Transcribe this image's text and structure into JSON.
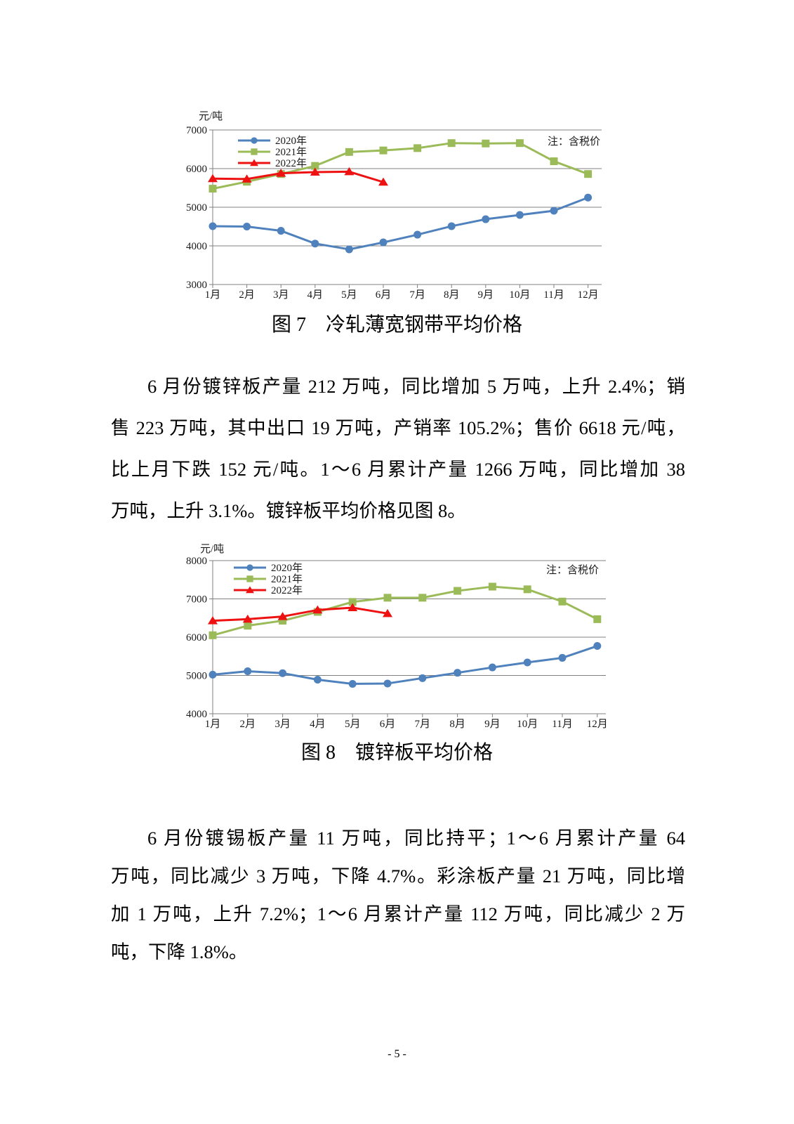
{
  "footer": {
    "page_number": "- 5 -"
  },
  "paragraphs": [
    {
      "lines": [
        "6 月份镀锌板产量 212 万吨，同比增加 5 万吨，上升 2.4%；销",
        "售 223 万吨，其中出口 19 万吨，产销率 105.2%；售价 6618 元/吨，",
        "比上月下跌 152 元/吨。1～6 月累计产量 1266 万吨，同比增加 38",
        "万吨，上升 3.1%。镀锌板平均价格见图 8。"
      ]
    },
    {
      "lines": [
        "6 月份镀锡板产量 11 万吨，同比持平；1～6 月累计产量 64",
        "万吨，同比减少 3 万吨，下降 4.7%。彩涂板产量 21 万吨，同比增",
        "加 1 万吨，上升 7.2%；1～6 月累计产量 112 万吨，同比减少 2 万",
        "吨，下降 1.8%。"
      ]
    }
  ],
  "chart_data": [
    {
      "type": "line",
      "title": "图 7　冷轧薄宽钢带平均价格",
      "y_axis_title": "元/吨",
      "note": "注：含税价",
      "ylim": [
        3000,
        7000
      ],
      "ytick_step": 1000,
      "grid": true,
      "legend_position": "top-left-inside",
      "categories": [
        "1月",
        "2月",
        "3月",
        "4月",
        "5月",
        "6月",
        "7月",
        "8月",
        "9月",
        "10月",
        "11月",
        "12月"
      ],
      "series": [
        {
          "name": "2020年",
          "color": "#4f81bd",
          "marker": "circle",
          "values": [
            4510,
            4500,
            4390,
            4060,
            3910,
            4090,
            4290,
            4510,
            4690,
            4800,
            4910,
            5250
          ]
        },
        {
          "name": "2021年",
          "color": "#9bbb59",
          "marker": "square",
          "values": [
            5480,
            5660,
            5860,
            6070,
            6430,
            6470,
            6530,
            6660,
            6650,
            6660,
            6190,
            5860
          ]
        },
        {
          "name": "2022年",
          "color": "#ee1111",
          "marker": "triangle",
          "values": [
            5740,
            5730,
            5880,
            5910,
            5920,
            5650,
            null,
            null,
            null,
            null,
            null,
            null
          ]
        }
      ]
    },
    {
      "type": "line",
      "title": "图 8　镀锌板平均价格",
      "y_axis_title": "元/吨",
      "note": "注：含税价",
      "ylim": [
        4000,
        8000
      ],
      "ytick_step": 1000,
      "grid": true,
      "legend_position": "top-left-inside",
      "categories": [
        "1月",
        "2月",
        "3月",
        "4月",
        "5月",
        "6月",
        "7月",
        "8月",
        "9月",
        "10月",
        "11月",
        "12月"
      ],
      "series": [
        {
          "name": "2020年",
          "color": "#4f81bd",
          "marker": "circle",
          "values": [
            5020,
            5110,
            5060,
            4890,
            4780,
            4790,
            4930,
            5070,
            5210,
            5340,
            5460,
            5770
          ]
        },
        {
          "name": "2021年",
          "color": "#9bbb59",
          "marker": "square",
          "values": [
            6050,
            6300,
            6430,
            6660,
            6920,
            7030,
            7030,
            7210,
            7320,
            7250,
            6930,
            6470
          ]
        },
        {
          "name": "2022年",
          "color": "#ee1111",
          "marker": "triangle",
          "values": [
            6430,
            6470,
            6540,
            6710,
            6770,
            6618,
            null,
            null,
            null,
            null,
            null,
            null
          ]
        }
      ]
    }
  ]
}
